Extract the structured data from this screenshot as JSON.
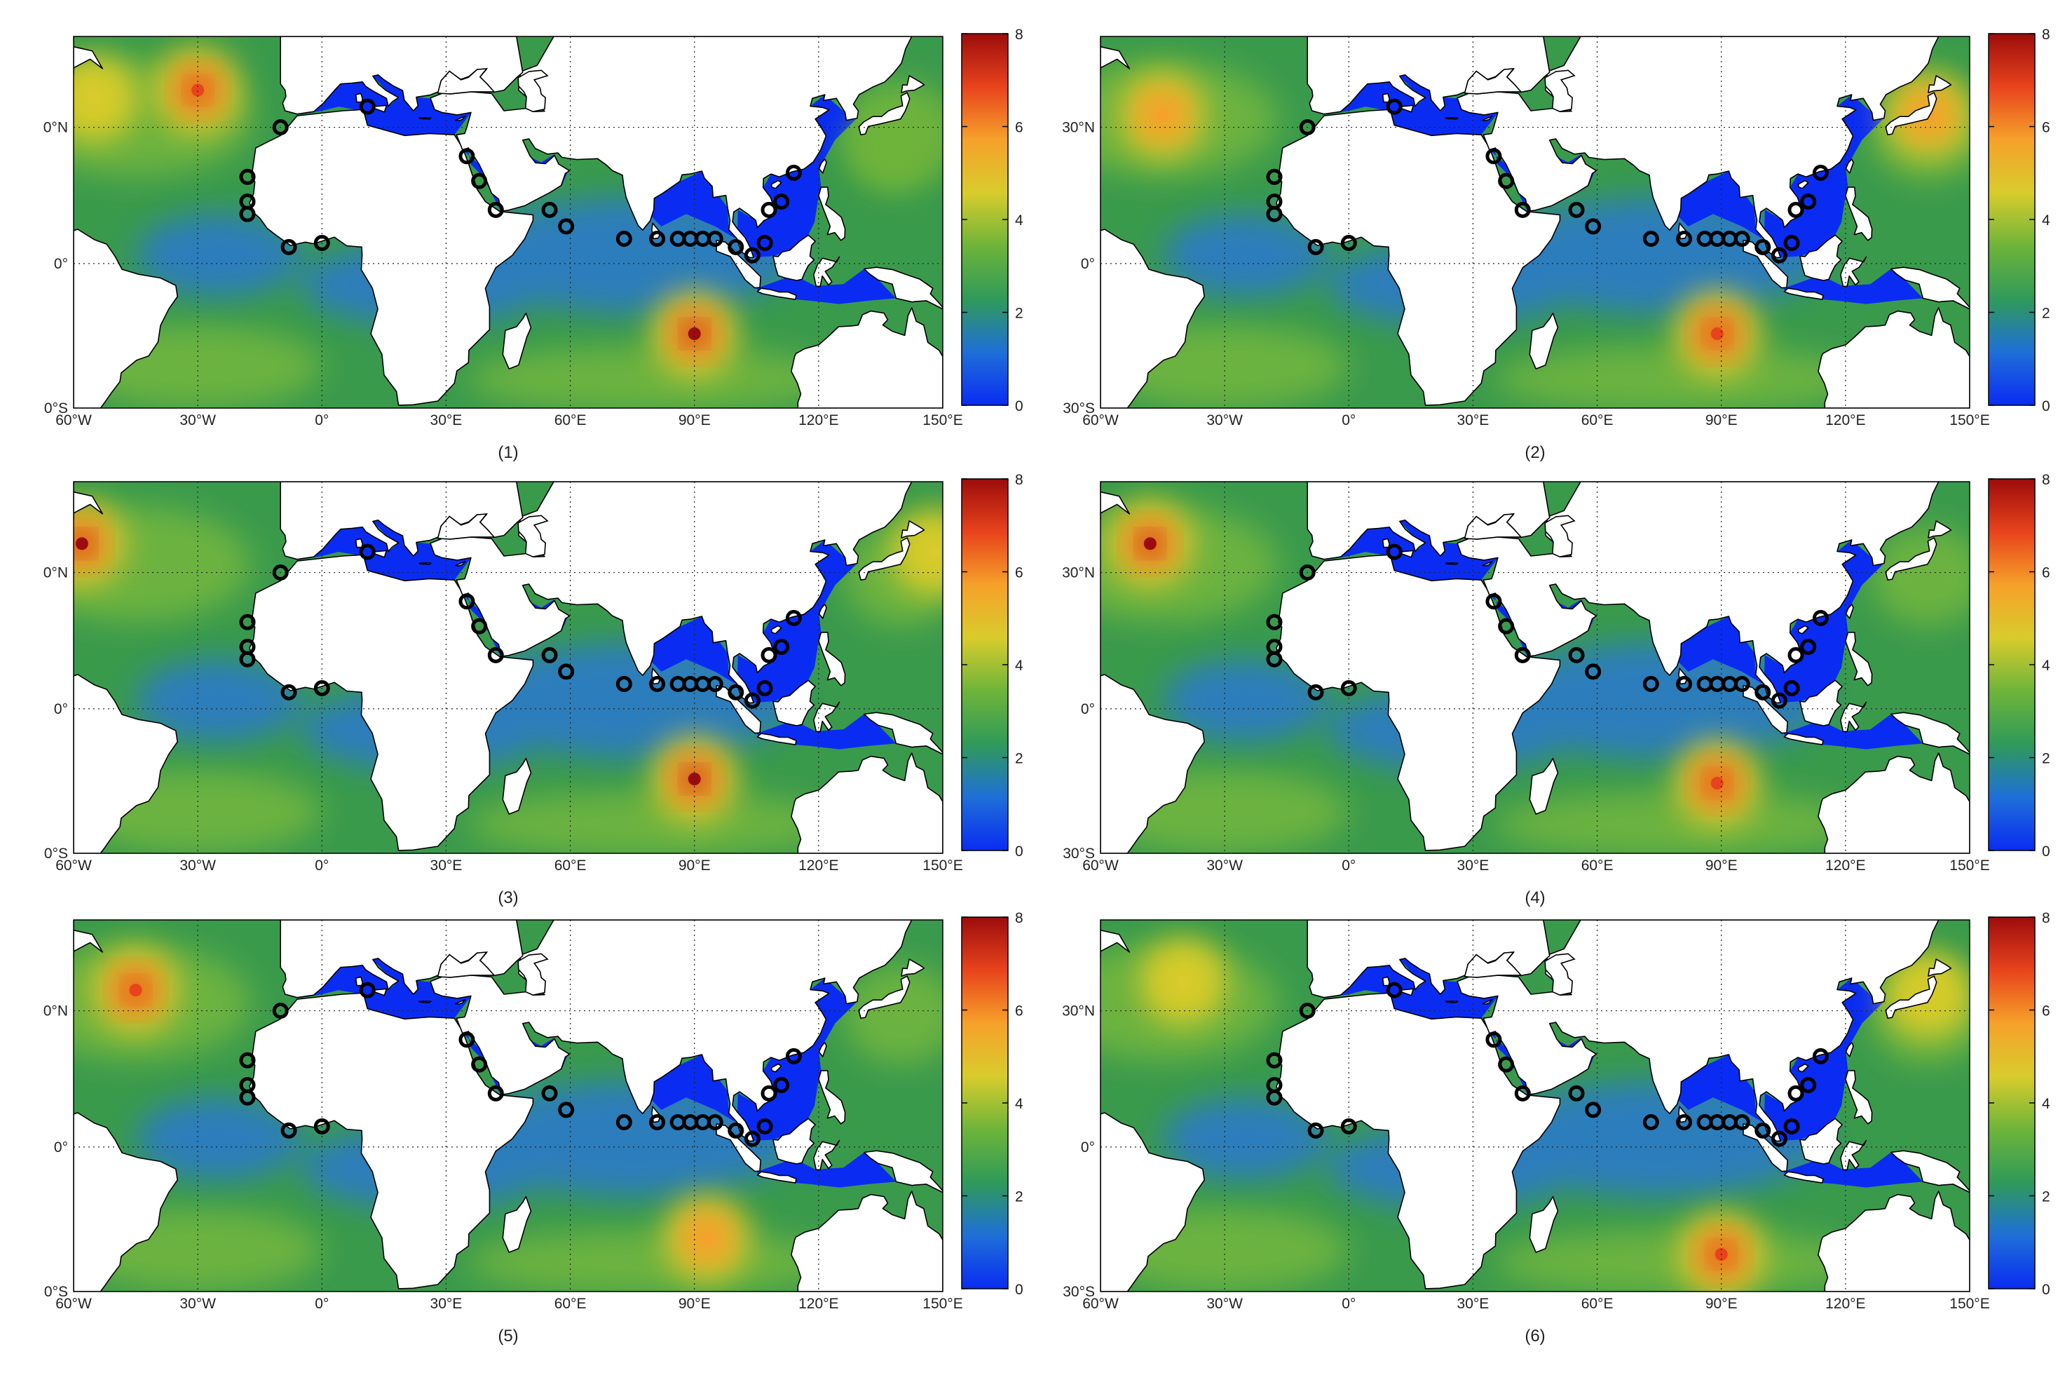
{
  "colorbar": {
    "min": 0,
    "max": 8,
    "ticks": [
      "0",
      "2",
      "4",
      "6",
      "8"
    ],
    "colors": [
      "#0a2cf2",
      "#1f6fd8",
      "#2f9a5a",
      "#6eb43a",
      "#d8cc2c",
      "#f6a12a",
      "#e8431c",
      "#9c0c0c"
    ]
  },
  "colors": {
    "land": "#ffffff",
    "coast": "#000000",
    "grid": "#222222",
    "station_marker": "#000000",
    "ocean_calm": "#2a78cf",
    "ocean_moderate": "#3a9a4c",
    "ocean_swell": "#7dbb3c"
  },
  "panels": [
    {
      "label": "(1)",
      "lon_ticks": [
        "60°W",
        "30°W",
        "0°",
        "30°E",
        "60°E",
        "90°E",
        "120°E",
        "150°E"
      ],
      "lat_ticks": [
        "0°S",
        "0°",
        "0°N"
      ],
      "hotspots": [
        {
          "lon": -30,
          "lat": 42,
          "value": 7.0
        },
        {
          "lon": -55,
          "lat": 40,
          "value": 5.0
        },
        {
          "lon": 90,
          "lat": -17,
          "value": 7.8
        },
        {
          "lon": 138,
          "lat": 28,
          "value": 3.6
        }
      ]
    },
    {
      "label": "(2)",
      "lon_ticks": [
        "60°W",
        "30°W",
        "0°",
        "30°E",
        "60°E",
        "90°E",
        "120°E",
        "150°E"
      ],
      "lat_ticks": [
        "30°S",
        "0°",
        "30°N"
      ],
      "hotspots": [
        {
          "lon": -45,
          "lat": 36,
          "value": 6.0
        },
        {
          "lon": 89,
          "lat": -17,
          "value": 7.2
        },
        {
          "lon": 140,
          "lat": 36,
          "value": 5.2
        }
      ]
    },
    {
      "label": "(3)",
      "lon_ticks": [
        "60°W",
        "30°W",
        "0°",
        "30°E",
        "60°E",
        "90°E",
        "120°E",
        "150°E"
      ],
      "lat_ticks": [
        "0°S",
        "0°",
        "0°N"
      ],
      "hotspots": [
        {
          "lon": -58,
          "lat": 40,
          "value": 7.8
        },
        {
          "lon": 90,
          "lat": -17,
          "value": 7.5
        },
        {
          "lon": 148,
          "lat": 38,
          "value": 5.0
        }
      ]
    },
    {
      "label": "(4)",
      "lon_ticks": [
        "60°W",
        "30°W",
        "0°",
        "30°E",
        "60°E",
        "90°E",
        "120°E",
        "150°E"
      ],
      "lat_ticks": [
        "30°S",
        "0°",
        "30°N"
      ],
      "hotspots": [
        {
          "lon": -48,
          "lat": 40,
          "value": 7.9
        },
        {
          "lon": 89,
          "lat": -18,
          "value": 6.5
        }
      ]
    },
    {
      "label": "(5)",
      "lon_ticks": [
        "60°W",
        "30°W",
        "0°",
        "30°E",
        "60°E",
        "90°E",
        "120°E",
        "150°E"
      ],
      "lat_ticks": [
        "0°S",
        "0°",
        "0°N"
      ],
      "hotspots": [
        {
          "lon": -45,
          "lat": 38,
          "value": 7.0
        },
        {
          "lon": 93,
          "lat": -22,
          "value": 6.0
        }
      ]
    },
    {
      "label": "(6)",
      "lon_ticks": [
        "60°W",
        "30°W",
        "0°",
        "30°E",
        "60°E",
        "90°E",
        "120°E",
        "150°E"
      ],
      "lat_ticks": [
        "30°S",
        "0°",
        "30°N"
      ],
      "hotspots": [
        {
          "lon": -40,
          "lat": 40,
          "value": 4.5
        },
        {
          "lon": 90,
          "lat": -26,
          "value": 6.5
        },
        {
          "lon": 140,
          "lat": 37,
          "value": 4.5
        }
      ]
    }
  ],
  "stations": [
    {
      "lon": -10,
      "lat": 33
    },
    {
      "lon": 11,
      "lat": 38
    },
    {
      "lon": -18,
      "lat": 21
    },
    {
      "lon": -18,
      "lat": 15
    },
    {
      "lon": -18,
      "lat": 12
    },
    {
      "lon": -8,
      "lat": 4
    },
    {
      "lon": 0,
      "lat": 5
    },
    {
      "lon": 35,
      "lat": 26
    },
    {
      "lon": 38,
      "lat": 20
    },
    {
      "lon": 42,
      "lat": 13
    },
    {
      "lon": 55,
      "lat": 13
    },
    {
      "lon": 59,
      "lat": 9
    },
    {
      "lon": 73,
      "lat": 6
    },
    {
      "lon": 81,
      "lat": 6
    },
    {
      "lon": 86,
      "lat": 6
    },
    {
      "lon": 89,
      "lat": 6
    },
    {
      "lon": 92,
      "lat": 6
    },
    {
      "lon": 95,
      "lat": 6
    },
    {
      "lon": 100,
      "lat": 4
    },
    {
      "lon": 104,
      "lat": 2
    },
    {
      "lon": 107,
      "lat": 5
    },
    {
      "lon": 108,
      "lat": 13
    },
    {
      "lon": 111,
      "lat": 15
    },
    {
      "lon": 114,
      "lat": 22
    }
  ]
}
